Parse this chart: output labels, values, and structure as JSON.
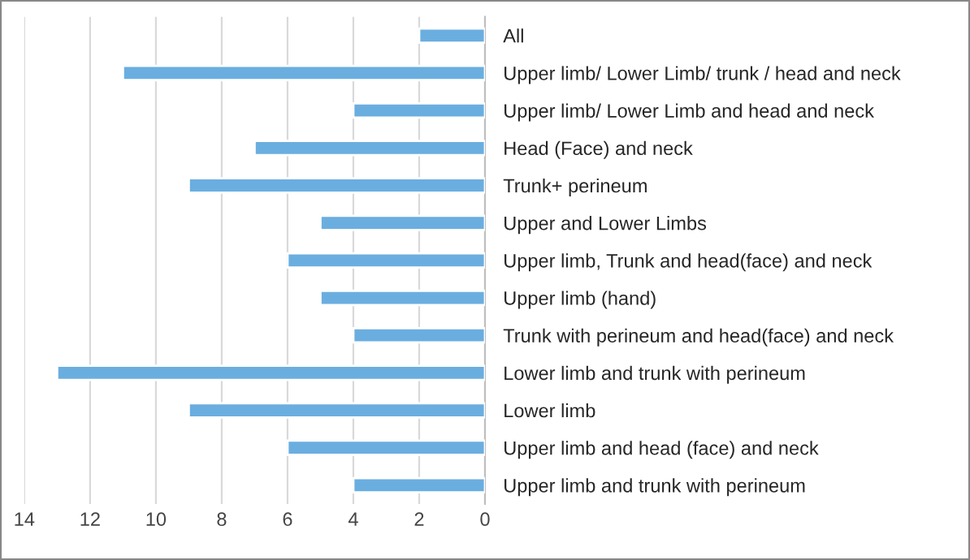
{
  "chart_data": {
    "type": "bar",
    "orientation": "horizontal",
    "categories": [
      "All",
      "Upper limb/ Lower Limb/ trunk / head and neck",
      "Upper limb/ Lower Limb and head and neck",
      "Head (Face) and neck",
      "Trunk+ perineum",
      "Upper and Lower Limbs",
      "Upper limb, Trunk and head(face) and neck",
      "Upper limb (hand)",
      "Trunk with perineum and head(face) and neck",
      "Lower limb and trunk with perineum",
      "Lower limb",
      "Upper limb and head (face) and neck",
      "Upper limb and trunk with perineum"
    ],
    "values": [
      2,
      11,
      4,
      7,
      9,
      5,
      6,
      5,
      4,
      13,
      9,
      6,
      4
    ],
    "color": "#6aaee0",
    "xlim": [
      14,
      0
    ],
    "xticks": [
      0,
      2,
      4,
      6,
      8,
      10,
      12,
      14
    ],
    "grid": "x"
  }
}
